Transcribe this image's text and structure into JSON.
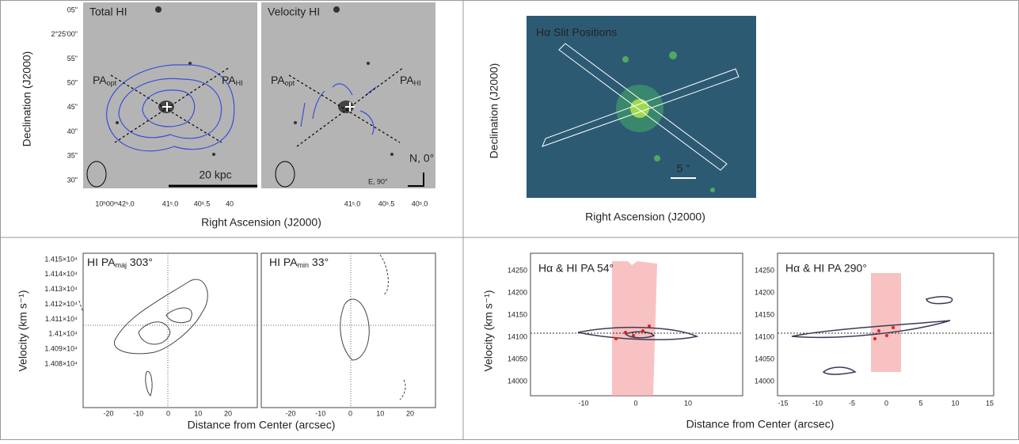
{
  "top_left": {
    "y_label": "Declination (J2000)",
    "x_label": "Right Ascension (J2000)",
    "yticks": [
      "05\"",
      "2°25'00\"",
      "55\"",
      "50\"",
      "45\"",
      "40\"",
      "35\"",
      "30\""
    ],
    "panels": [
      {
        "title": "Total HI",
        "pa_opt": "PA",
        "pa_opt_sub": "opt",
        "pa_hi": "PA",
        "pa_hi_sub": "HI",
        "scale": "20 kpc",
        "xticks": [
          "10ʰ00ᵐ42ˢ.0",
          "41ˢ.0",
          "40ˢ.5",
          "40"
        ]
      },
      {
        "title": "Velocity HI",
        "pa_opt": "PA",
        "pa_opt_sub": "opt",
        "pa_hi": "PA",
        "pa_hi_sub": "HI",
        "compass_n": "N, 0°",
        "compass_e": "E, 90°",
        "xticks": [
          "41ˢ.0",
          "40ˢ.5",
          "40ˢ.0"
        ]
      }
    ]
  },
  "bottom_left": {
    "y_label": "Velocity (km s⁻¹)",
    "x_label": "Distance from Center (arcsec)",
    "yticks": [
      "1.415×10⁴",
      "1.414×10⁴",
      "1.413×10⁴",
      "1.412×10⁴",
      "1.411×10⁴",
      "1.41×10⁴",
      "1.409×10⁴",
      "1.408×10⁴"
    ],
    "panels": [
      {
        "title_pre": "HI PA",
        "title_sub": "maj",
        "title_post": " 303°",
        "xticks": [
          "-20",
          "-10",
          "0",
          "10",
          "20"
        ]
      },
      {
        "title_pre": "HI PA",
        "title_sub": "min",
        "title_post": " 33°",
        "xticks": [
          "-20",
          "-10",
          "0",
          "10",
          "20"
        ]
      }
    ]
  },
  "top_right": {
    "title": "Hα Slit Positions",
    "scale": "5 \"",
    "y_label": "Declination (J2000)",
    "x_label": "Right Ascension (J2000)"
  },
  "bottom_right": {
    "y_label": "Velocity (km s⁻¹)",
    "x_label": "Distance from Center (arcsec)",
    "panels": [
      {
        "title": "Hα & HI PA 54°",
        "yticks": [
          "14250",
          "14200",
          "14150",
          "14100",
          "14050",
          "14000"
        ],
        "xticks": [
          "-10",
          "0",
          "10"
        ]
      },
      {
        "title": "Hα & HI PA 290°",
        "yticks": [
          "14250",
          "14200",
          "14150",
          "14100",
          "14050",
          "14000"
        ],
        "xticks": [
          "-15",
          "-10",
          "-5",
          "0",
          "5",
          "10",
          "15"
        ]
      }
    ]
  }
}
